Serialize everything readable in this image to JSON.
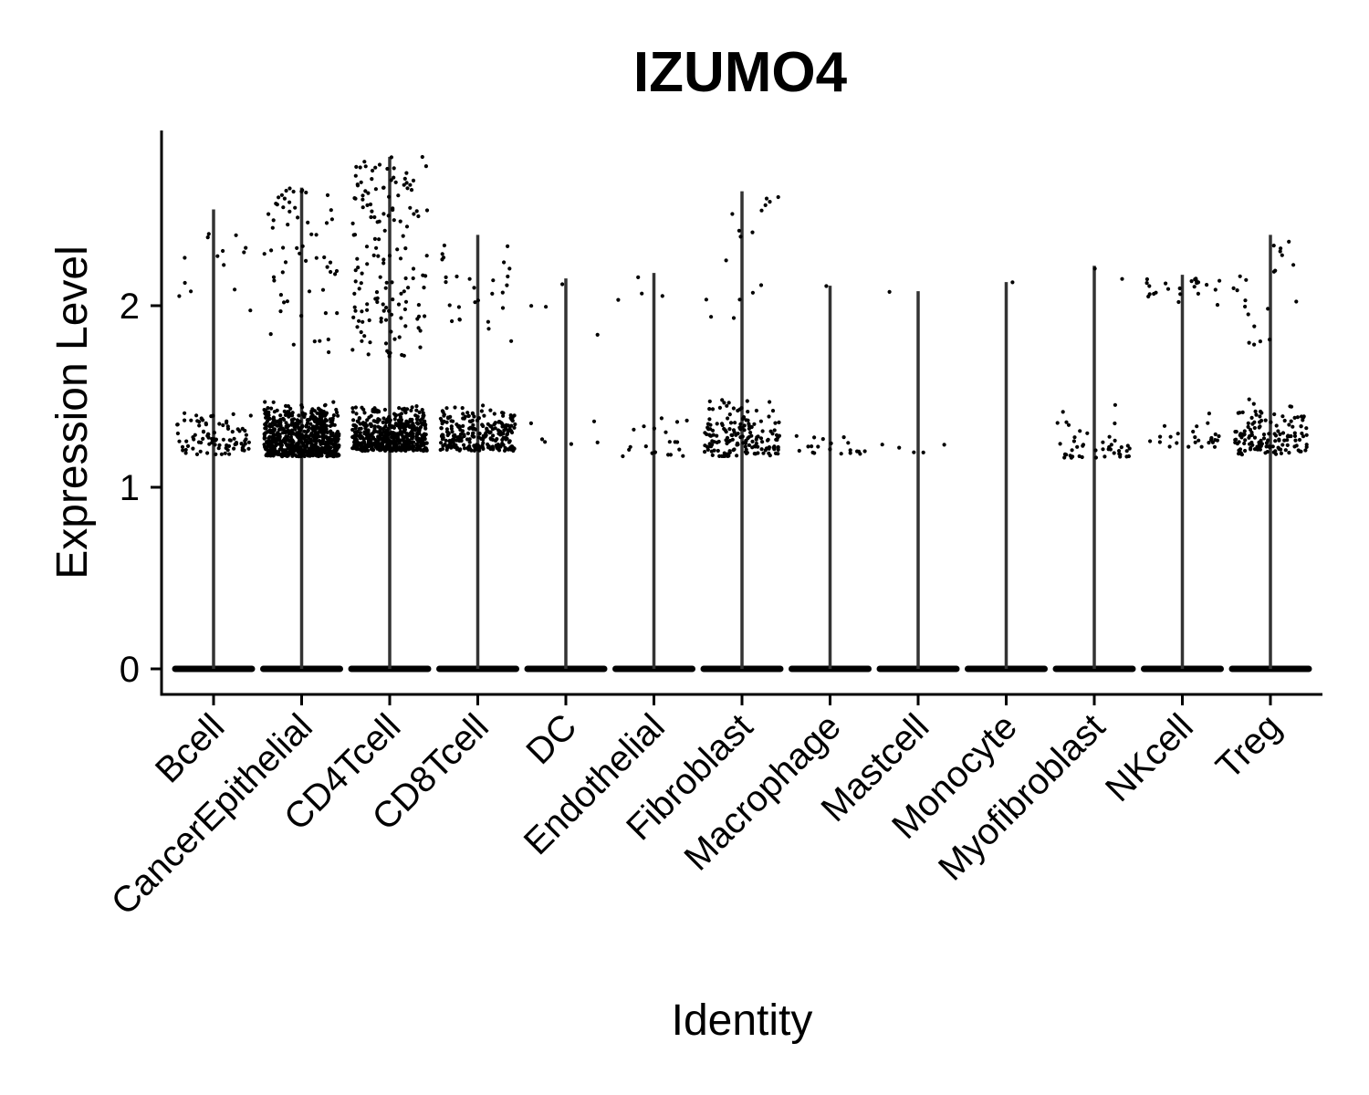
{
  "chart_data": {
    "type": "violin",
    "title": "IZUMO4",
    "xlabel": "Identity",
    "ylabel": "Expression Level",
    "ylim": [
      -0.14,
      2.96
    ],
    "yticks": [
      0,
      1,
      2
    ],
    "categories": [
      "Bcell",
      "CancerEpithelial",
      "CD4Tcell",
      "CD8Tcell",
      "DC",
      "Endothelial",
      "Fibroblast",
      "Macrophage",
      "Mastcell",
      "Monocyte",
      "Myofibroblast",
      "NKcell",
      "Treg"
    ],
    "max_expression": [
      2.53,
      2.65,
      2.82,
      2.39,
      2.15,
      2.18,
      2.63,
      2.11,
      2.08,
      2.13,
      2.22,
      2.17,
      2.39
    ],
    "zero_value": 0,
    "point_clusters": [
      {
        "category": "Bcell",
        "low": [
          1.18,
          1.45
        ],
        "low_n": 90,
        "high": [
          1.95,
          2.5
        ],
        "high_n": 14
      },
      {
        "category": "CancerEpithelial",
        "low": [
          1.17,
          1.48
        ],
        "low_n": 700,
        "high": [
          1.72,
          2.65
        ],
        "high_n": 60
      },
      {
        "category": "CD4Tcell",
        "low": [
          1.2,
          1.46
        ],
        "low_n": 520,
        "high": [
          1.72,
          2.82
        ],
        "high_n": 150
      },
      {
        "category": "CD8Tcell",
        "low": [
          1.2,
          1.47
        ],
        "low_n": 260,
        "high": [
          1.8,
          2.39
        ],
        "high_n": 28
      },
      {
        "category": "DC",
        "low": [
          1.22,
          1.44
        ],
        "low_n": 6,
        "high": [
          1.78,
          2.14
        ],
        "high_n": 4
      },
      {
        "category": "Endothelial",
        "low": [
          1.17,
          1.4
        ],
        "low_n": 20,
        "high": [
          2.0,
          2.17
        ],
        "high_n": 4
      },
      {
        "category": "Fibroblast",
        "low": [
          1.17,
          1.5
        ],
        "low_n": 170,
        "high": [
          1.76,
          2.62
        ],
        "high_n": 16
      },
      {
        "category": "Macrophage",
        "low": [
          1.18,
          1.31
        ],
        "low_n": 20,
        "high": [
          2.1,
          2.11
        ],
        "high_n": 1
      },
      {
        "category": "Mastcell",
        "low": [
          1.19,
          1.29
        ],
        "low_n": 5,
        "high": [
          2.07,
          2.08
        ],
        "high_n": 1
      },
      {
        "category": "Monocyte",
        "low": [],
        "low_n": 0,
        "high": [
          2.12,
          2.13
        ],
        "high_n": 1
      },
      {
        "category": "Myofibroblast",
        "low": [
          1.16,
          1.47
        ],
        "low_n": 45,
        "high": [
          2.04,
          2.22
        ],
        "high_n": 2
      },
      {
        "category": "NKcell",
        "low": [
          1.22,
          1.45
        ],
        "low_n": 26,
        "high": [
          2.0,
          2.16
        ],
        "high_n": 24
      },
      {
        "category": "Treg",
        "low": [
          1.18,
          1.5
        ],
        "low_n": 140,
        "high": [
          1.78,
          2.39
        ],
        "high_n": 22
      }
    ]
  }
}
